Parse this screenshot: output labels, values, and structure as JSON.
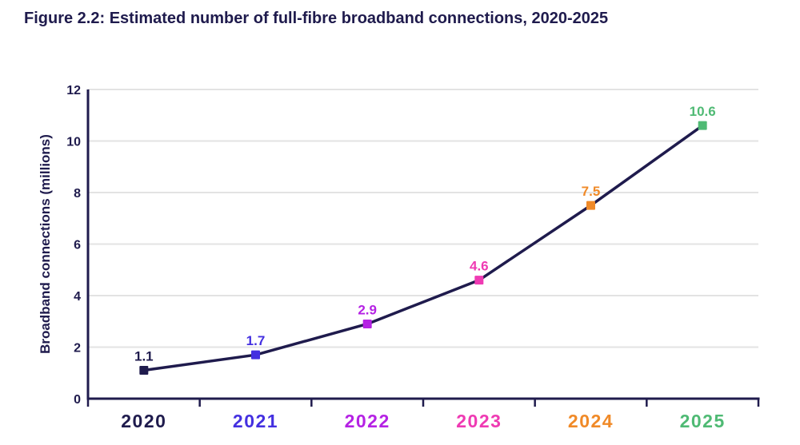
{
  "colors": {
    "navy": "#1f1b4d",
    "grid": "#e3e3e3",
    "background": "#ffffff"
  },
  "chart_data": {
    "type": "line",
    "title": "Figure 2.2: Estimated number of full-fibre broadband connections, 2020-2025",
    "categories": [
      "2020",
      "2021",
      "2022",
      "2023",
      "2024",
      "2025"
    ],
    "values": [
      1.1,
      1.7,
      2.9,
      4.6,
      7.5,
      10.6
    ],
    "point_labels": [
      "1.1",
      "1.7",
      "2.9",
      "4.6",
      "7.5",
      "10.6"
    ],
    "point_colors": [
      "#1f1b4d",
      "#4430e0",
      "#b522e4",
      "#ef3ab3",
      "#f08a28",
      "#4fba74"
    ],
    "line_color": "#1f1b4d",
    "marker": "square",
    "xlabel": "",
    "ylabel": "Broadband connections (millions)",
    "ylim": [
      0,
      12
    ],
    "yticks": [
      0,
      2,
      4,
      6,
      8,
      10,
      12
    ],
    "grid": "horizontal",
    "legend": "none"
  }
}
